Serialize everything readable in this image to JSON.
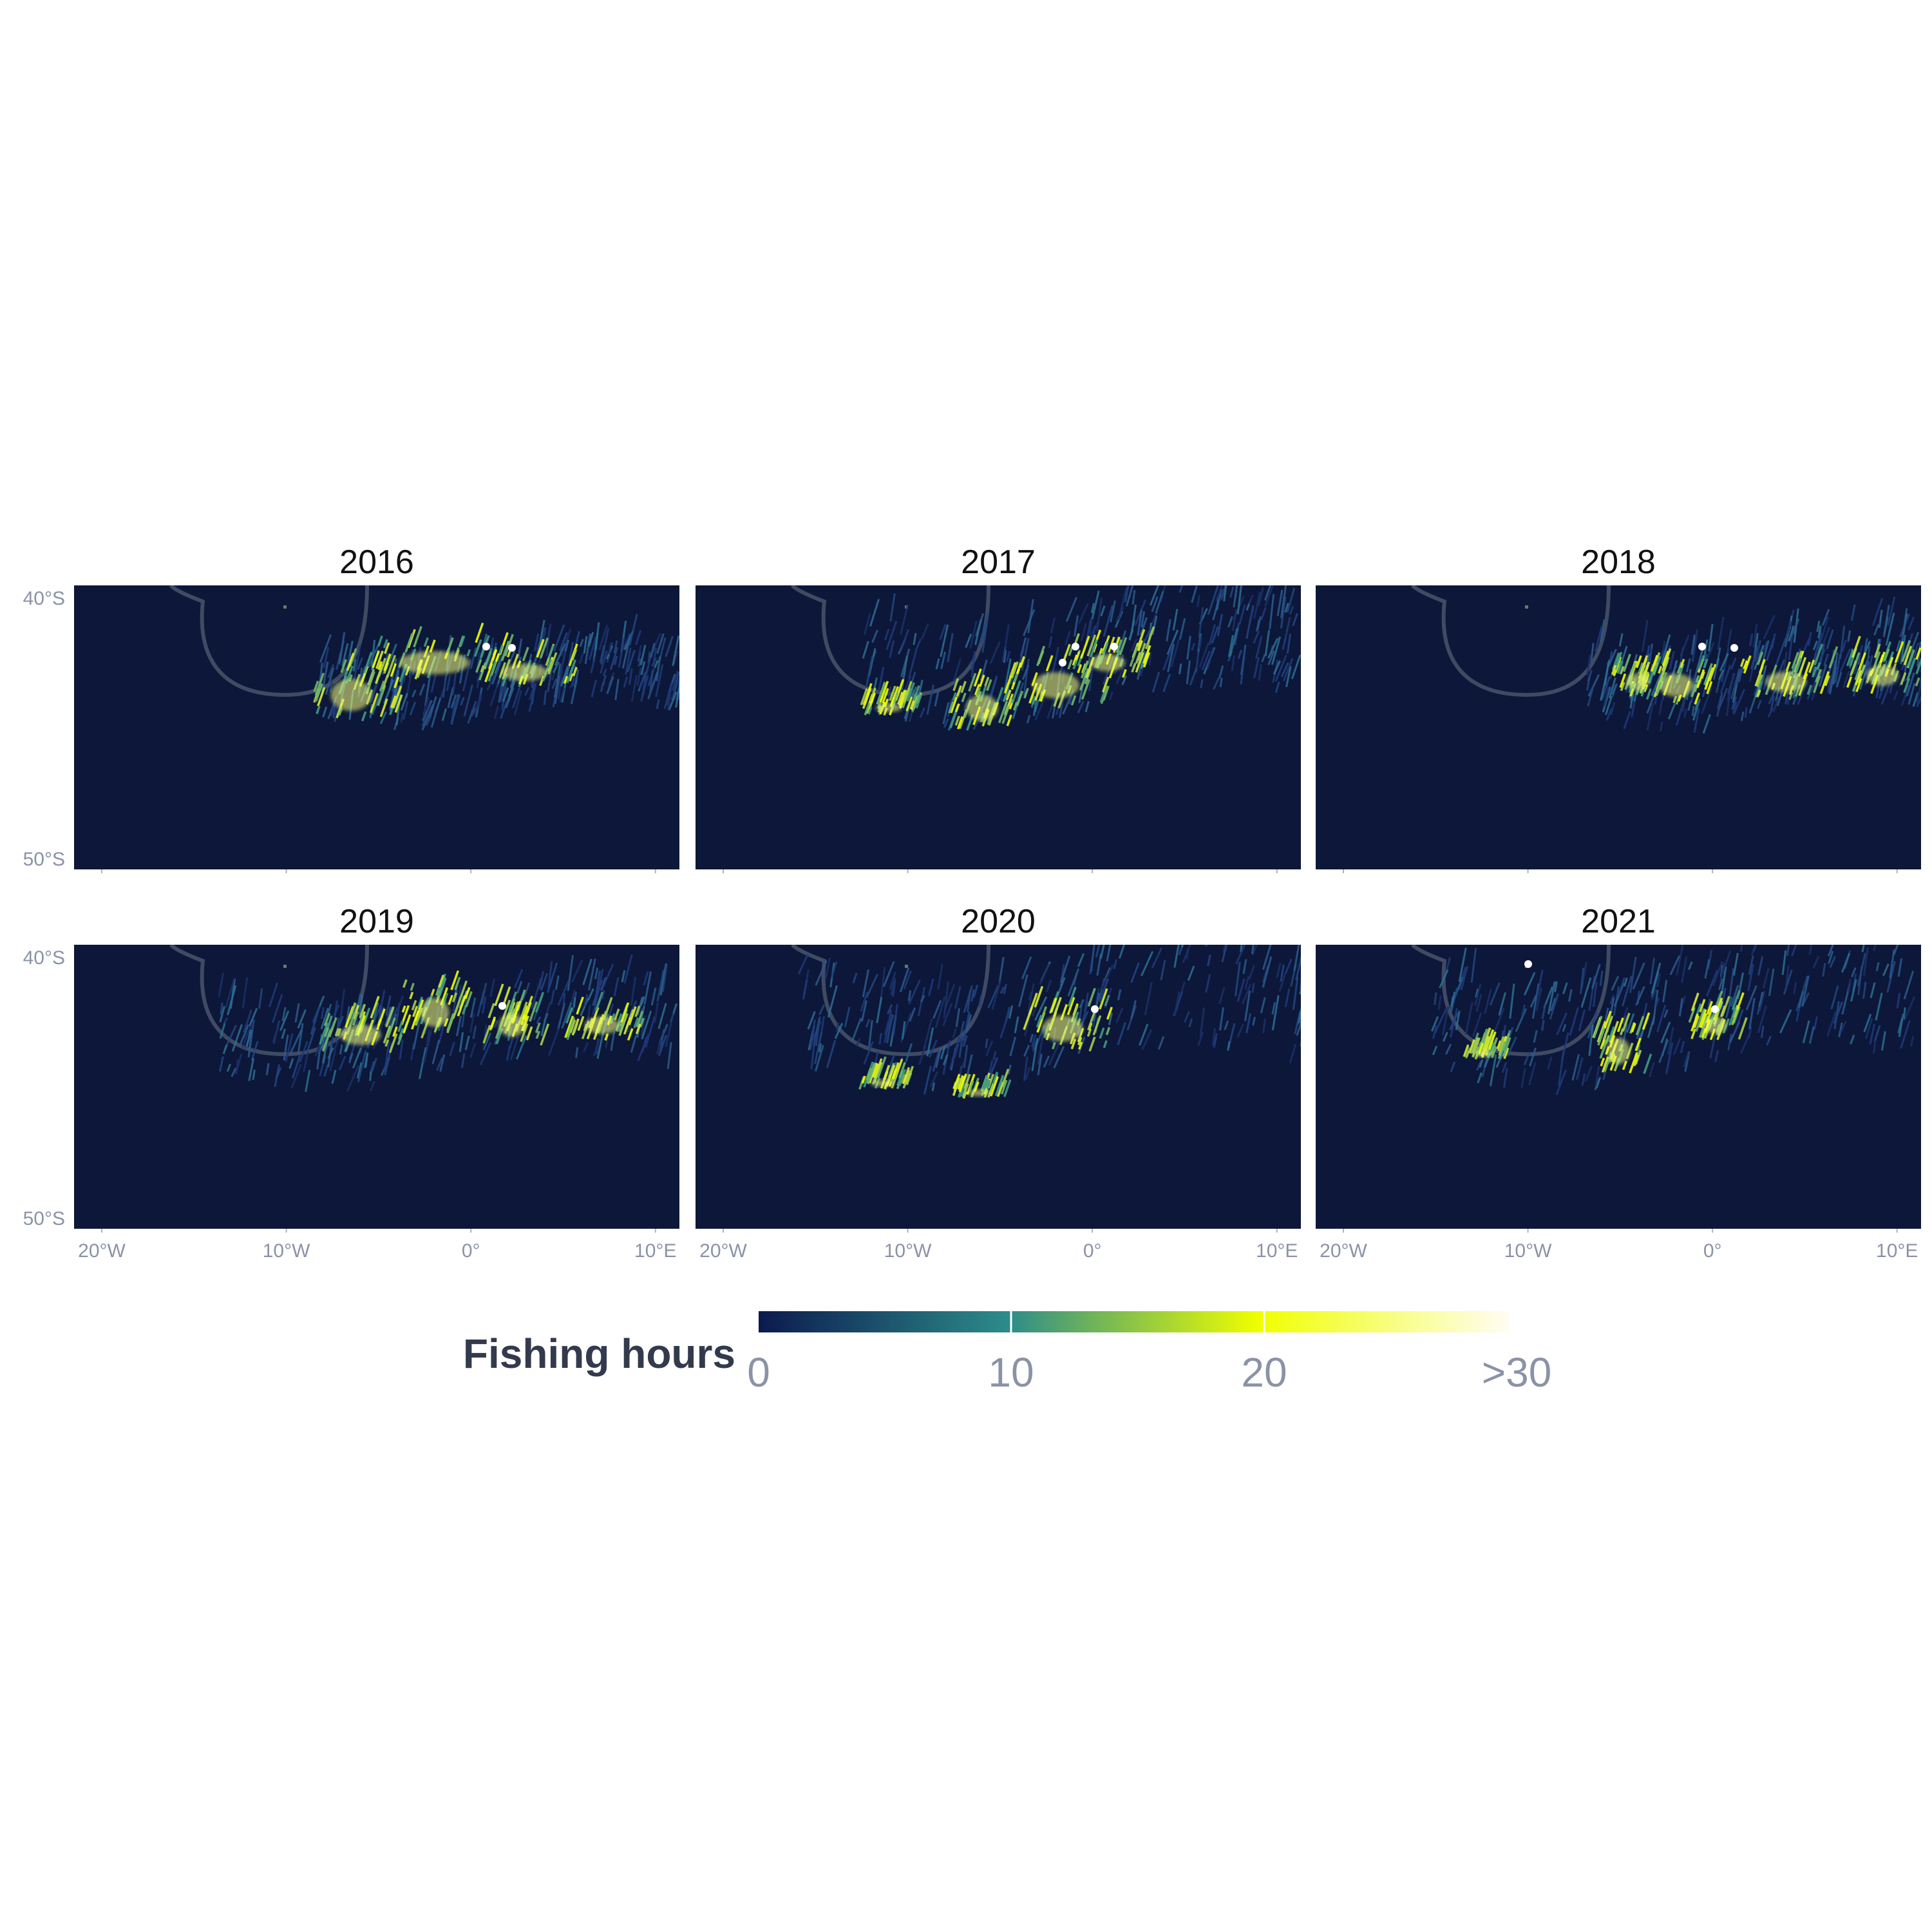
{
  "map": {
    "panels": [
      {
        "title": "2016"
      },
      {
        "title": "2017"
      },
      {
        "title": "2018"
      },
      {
        "title": "2019"
      },
      {
        "title": "2020"
      },
      {
        "title": "2021"
      }
    ],
    "lon_ticks": [
      {
        "lon": -20,
        "label": "20°W"
      },
      {
        "lon": -10,
        "label": "10°W"
      },
      {
        "lon": 0,
        "label": "0°"
      },
      {
        "lon": 10,
        "label": "10°E"
      }
    ],
    "lat_ticks": [
      {
        "lat": -40,
        "label": "40°S"
      },
      {
        "lat": -50,
        "label": "50°S"
      }
    ],
    "lon_range": [
      -21.5,
      11.3
    ],
    "lat_range": [
      -50.4,
      -39.5
    ],
    "colors": {
      "ocean": "#0c1739",
      "boundary": "#3f4a63",
      "island": "#6a7a66"
    },
    "legend": {
      "title": "Fishing hours",
      "ticks": [
        "0",
        "10",
        "20",
        ">30"
      ],
      "stops": [
        {
          "value": 0,
          "color": "#0c1a4e"
        },
        {
          "value": 10,
          "color": "#2d8c8a"
        },
        {
          "value": 20,
          "color": "#f0ff00"
        },
        {
          "value": 30,
          "color": "#fffdf4"
        }
      ]
    }
  }
}
